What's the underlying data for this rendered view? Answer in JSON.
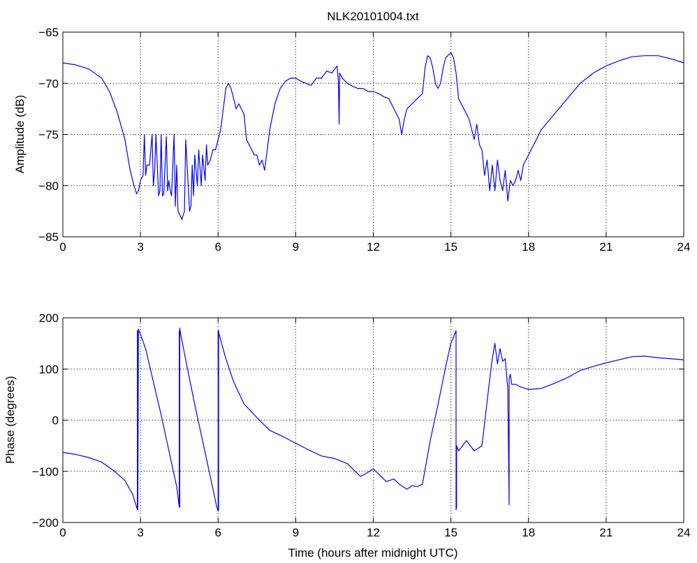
{
  "figure": {
    "title": "NLK20101004.txt",
    "line_color": "#0000ff",
    "grid": "dotted"
  },
  "chart_data": [
    {
      "type": "line",
      "title": "NLK20101004.txt",
      "xlabel": "",
      "ylabel": "Amplitude (dB)",
      "xlim": [
        0,
        24
      ],
      "ylim": [
        -85,
        -65
      ],
      "xticks": [
        0,
        3,
        6,
        9,
        12,
        15,
        18,
        21,
        24
      ],
      "xtick_labels": [
        "0",
        "3",
        "6",
        "9",
        "12",
        "15",
        "18",
        "21",
        "24"
      ],
      "yticks": [
        -85,
        -80,
        -75,
        -70,
        -65
      ],
      "ytick_labels": [
        "−85",
        "−80",
        "−75",
        "−70",
        "−65"
      ],
      "grid": true,
      "series": [
        {
          "color": "#0000ff",
          "x": [
            0,
            0.5,
            1.0,
            1.5,
            1.8,
            2.1,
            2.4,
            2.6,
            2.75,
            2.85,
            2.92,
            3.0,
            3.1,
            3.15,
            3.2,
            3.25,
            3.35,
            3.45,
            3.5,
            3.55,
            3.6,
            3.7,
            3.75,
            3.8,
            3.85,
            3.9,
            4.0,
            4.05,
            4.1,
            4.15,
            4.2,
            4.3,
            4.35,
            4.4,
            4.45,
            4.55,
            4.6,
            4.7,
            4.75,
            4.9,
            4.95,
            5.0,
            5.05,
            5.1,
            5.2,
            5.25,
            5.35,
            5.4,
            5.5,
            5.55,
            5.6,
            5.7,
            5.8,
            5.9,
            6.0,
            6.1,
            6.2,
            6.3,
            6.4,
            6.5,
            6.6,
            6.7,
            6.8,
            7.0,
            7.1,
            7.2,
            7.3,
            7.4,
            7.5,
            7.6,
            7.7,
            7.8,
            7.9,
            8.0,
            8.2,
            8.4,
            8.6,
            8.8,
            9.0,
            9.2,
            9.4,
            9.6,
            9.8,
            10.0,
            10.2,
            10.4,
            10.6,
            10.65,
            10.68,
            10.7,
            10.8,
            11.0,
            11.2,
            11.4,
            11.6,
            11.8,
            12.0,
            12.2,
            12.4,
            12.6,
            12.8,
            13.0,
            13.1,
            13.2,
            13.3,
            13.5,
            13.7,
            13.9,
            14.0,
            14.1,
            14.2,
            14.3,
            14.4,
            14.5,
            14.6,
            14.7,
            14.8,
            15.0,
            15.1,
            15.2,
            15.3,
            15.5,
            15.7,
            15.9,
            16.0,
            16.1,
            16.2,
            16.3,
            16.4,
            16.5,
            16.6,
            16.7,
            16.8,
            16.9,
            17.0,
            17.1,
            17.2,
            17.3,
            17.4,
            17.5,
            17.6,
            17.7,
            17.8,
            17.9,
            18.0,
            18.2,
            18.5,
            19.0,
            19.5,
            20.0,
            20.5,
            21.0,
            21.5,
            22.0,
            22.5,
            23.0,
            23.5,
            24.0
          ],
          "y": [
            -68,
            -68.2,
            -68.6,
            -69.5,
            -70.8,
            -72.8,
            -75.5,
            -78.5,
            -80.0,
            -80.8,
            -80.5,
            -79.5,
            -79.0,
            -75.0,
            -79.0,
            -78.0,
            -78.0,
            -75.0,
            -80.0,
            -78.5,
            -75.0,
            -81.0,
            -80.5,
            -75.0,
            -81.0,
            -80.8,
            -75.2,
            -80.5,
            -79.5,
            -80.5,
            -81.0,
            -75.0,
            -82.0,
            -78.0,
            -82.5,
            -83.0,
            -83.3,
            -82.5,
            -75.5,
            -82.5,
            -82.0,
            -78.0,
            -81.0,
            -77.0,
            -80.0,
            -76.5,
            -80.0,
            -77.0,
            -79.5,
            -76.0,
            -78.0,
            -77.5,
            -76.5,
            -76.5,
            -75.5,
            -74.5,
            -72.5,
            -70.5,
            -70.0,
            -70.5,
            -71.5,
            -72.5,
            -72.0,
            -73.0,
            -75.5,
            -76.0,
            -76.5,
            -77.0,
            -77.0,
            -78.0,
            -77.5,
            -78.5,
            -76.5,
            -74.5,
            -72.0,
            -70.5,
            -69.8,
            -69.5,
            -69.5,
            -69.8,
            -70.0,
            -70.2,
            -69.5,
            -69.5,
            -68.8,
            -69.0,
            -68.3,
            -69.8,
            -74.0,
            -69.0,
            -69.5,
            -70.0,
            -70.3,
            -70.5,
            -70.5,
            -70.8,
            -70.8,
            -71.0,
            -71.3,
            -71.5,
            -72.5,
            -73.5,
            -75.0,
            -73.5,
            -72.5,
            -72.0,
            -71.5,
            -71.0,
            -68.5,
            -67.3,
            -67.5,
            -68.5,
            -70.0,
            -70.5,
            -70.0,
            -68.5,
            -67.5,
            -67.0,
            -67.5,
            -69.0,
            -71.5,
            -72.5,
            -73.5,
            -75.5,
            -74.0,
            -76.0,
            -76.5,
            -79.0,
            -77.5,
            -80.5,
            -78.0,
            -80.5,
            -77.5,
            -79.5,
            -80.5,
            -78.5,
            -81.5,
            -79.5,
            -80.0,
            -79.5,
            -78.5,
            -79.5,
            -78.0,
            -77.5,
            -77.0,
            -76.0,
            -74.5,
            -73.0,
            -71.5,
            -70.0,
            -69.0,
            -68.3,
            -67.8,
            -67.4,
            -67.3,
            -67.3,
            -67.6,
            -68.0
          ]
        }
      ]
    },
    {
      "type": "line",
      "title": "",
      "xlabel": "Time (hours after midnight UTC)",
      "ylabel": "Phase (degrees)",
      "xlim": [
        0,
        24
      ],
      "ylim": [
        -200,
        200
      ],
      "xticks": [
        0,
        3,
        6,
        9,
        12,
        15,
        18,
        21,
        24
      ],
      "xtick_labels": [
        "0",
        "3",
        "6",
        "9",
        "12",
        "15",
        "18",
        "21",
        "24"
      ],
      "yticks": [
        -200,
        -100,
        0,
        100,
        200
      ],
      "ytick_labels": [
        "−200",
        "−100",
        "0",
        "100",
        "200"
      ],
      "grid": true,
      "series": [
        {
          "color": "#0000ff",
          "x": [
            0,
            0.5,
            1.0,
            1.5,
            2.0,
            2.4,
            2.7,
            2.85,
            2.88,
            2.88,
            2.9,
            2.9,
            2.92,
            3.2,
            3.5,
            3.8,
            4.1,
            4.4,
            4.5,
            4.5,
            4.52,
            4.52,
            4.55,
            4.8,
            5.1,
            5.4,
            5.7,
            5.95,
            6.0,
            6.0,
            6.02,
            6.02,
            6.04,
            6.3,
            6.6,
            7.0,
            7.5,
            8.0,
            8.5,
            9.0,
            9.5,
            10.0,
            10.5,
            11.0,
            11.5,
            11.7,
            12.0,
            12.3,
            12.5,
            12.8,
            13.0,
            13.3,
            13.5,
            13.7,
            13.9,
            14.2,
            14.5,
            14.8,
            15.0,
            15.2,
            15.2,
            15.22,
            15.22,
            15.3,
            15.6,
            15.9,
            16.2,
            16.5,
            16.6,
            16.7,
            16.8,
            16.9,
            17.0,
            17.1,
            17.2,
            17.25,
            17.25,
            17.3,
            17.35,
            17.5,
            17.7,
            18.0,
            18.5,
            19.0,
            19.5,
            20.0,
            20.5,
            21.0,
            21.5,
            22.0,
            22.5,
            23.0,
            23.5,
            24.0
          ],
          "y": [
            -63,
            -67,
            -73,
            -82,
            -100,
            -118,
            -145,
            -170,
            -175,
            175,
            170,
            -175,
            178,
            140,
            75,
            10,
            -60,
            -130,
            -170,
            175,
            -170,
            180,
            170,
            105,
            30,
            -40,
            -110,
            -170,
            -178,
            175,
            -175,
            175,
            168,
            120,
            75,
            32,
            5,
            -20,
            -32,
            -45,
            -58,
            -70,
            -75,
            -85,
            -110,
            -105,
            -95,
            -110,
            -120,
            -115,
            -125,
            -135,
            -128,
            -130,
            -125,
            -40,
            30,
            105,
            150,
            175,
            -175,
            -170,
            -50,
            -60,
            -40,
            -60,
            -50,
            80,
            120,
            150,
            110,
            140,
            115,
            120,
            60,
            -165,
            80,
            90,
            70,
            70,
            65,
            60,
            62,
            72,
            83,
            97,
            105,
            112,
            118,
            124,
            125,
            122,
            120,
            118
          ]
        }
      ]
    }
  ]
}
